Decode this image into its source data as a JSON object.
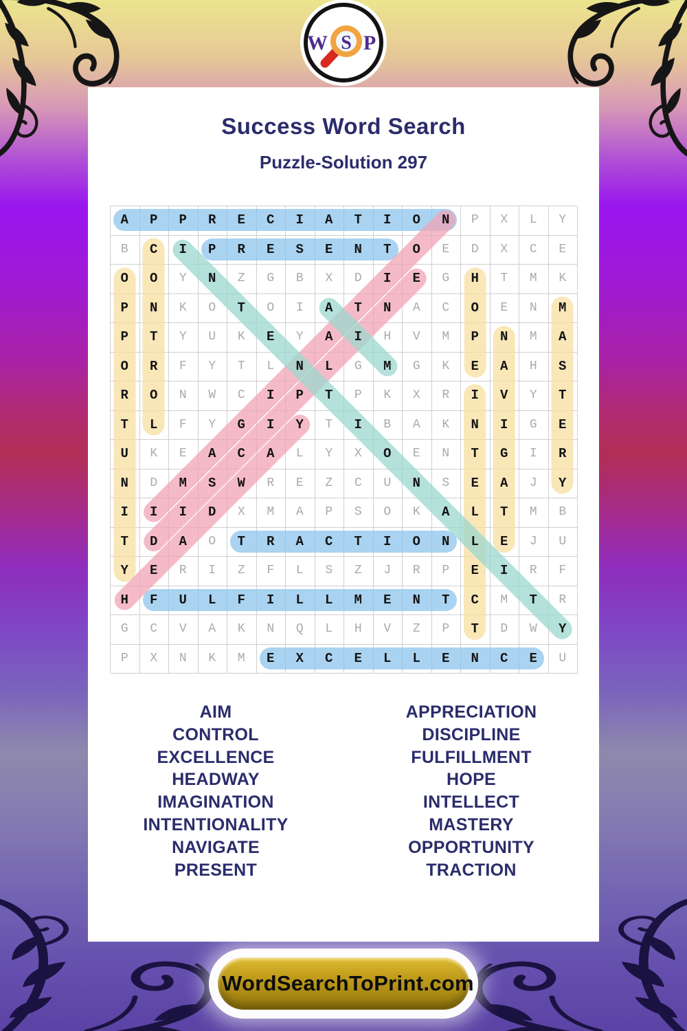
{
  "logo": {
    "letters": {
      "w": "W",
      "s": "S",
      "p": "P"
    }
  },
  "header": {
    "title": "Success Word Search",
    "subtitle": "Puzzle-Solution 297"
  },
  "puzzle": {
    "grid_size": 16,
    "grid": [
      "APPRECIATIONPXLY",
      "BCIPRESENTOEDXCE",
      "OOYNZGBXDIEGHTMK",
      "PNKOTOIATNACOENM",
      "PTYUKEYAIHVMPNMA",
      "ORFYTLNLGMGKEAHS",
      "RONWCIPTPKXRIVYT",
      "TLFYGIYTIBAKNIGE",
      "UKEACALYXOENTGIR",
      "NDMSWREZCUNSEAJY",
      "IIIDXMAPSOKALTMB",
      "TDAOTRACTIONLEJU",
      "YERIZFLSZJRPEIRF",
      "HFULFILLMENTCMTR",
      "GCVAKNQLHVZPTDWY",
      "PXNKMEXCELLENCEU"
    ],
    "solutions": [
      {
        "word": "APPRECIATION",
        "start": [
          1,
          1
        ],
        "end": [
          1,
          12
        ],
        "color": "blue"
      },
      {
        "word": "PRESENT",
        "start": [
          2,
          4
        ],
        "end": [
          2,
          10
        ],
        "color": "blue"
      },
      {
        "word": "TRACTION",
        "start": [
          12,
          5
        ],
        "end": [
          12,
          12
        ],
        "color": "blue"
      },
      {
        "word": "FULFILLMENT",
        "start": [
          14,
          2
        ],
        "end": [
          14,
          12
        ],
        "color": "blue"
      },
      {
        "word": "EXCELLENCE",
        "start": [
          16,
          6
        ],
        "end": [
          16,
          15
        ],
        "color": "blue"
      },
      {
        "word": "OPPORTUNITY",
        "start": [
          3,
          1
        ],
        "end": [
          13,
          1
        ],
        "color": "yellow"
      },
      {
        "word": "CONTROL",
        "start": [
          2,
          2
        ],
        "end": [
          8,
          2
        ],
        "color": "yellow"
      },
      {
        "word": "HOPE",
        "start": [
          3,
          13
        ],
        "end": [
          6,
          13
        ],
        "color": "yellow"
      },
      {
        "word": "INTELLECT",
        "start": [
          7,
          13
        ],
        "end": [
          15,
          13
        ],
        "color": "yellow"
      },
      {
        "word": "NAVIGATE",
        "start": [
          5,
          14
        ],
        "end": [
          12,
          14
        ],
        "color": "yellow"
      },
      {
        "word": "MASTERY",
        "start": [
          4,
          16
        ],
        "end": [
          10,
          16
        ],
        "color": "yellow"
      },
      {
        "word": "IMAGINATION",
        "start": [
          11,
          2
        ],
        "end": [
          1,
          12
        ],
        "color": "pink"
      },
      {
        "word": "DISCIPLINE",
        "start": [
          12,
          2
        ],
        "end": [
          3,
          11
        ],
        "color": "pink"
      },
      {
        "word": "HEADWAY",
        "start": [
          14,
          1
        ],
        "end": [
          8,
          7
        ],
        "color": "pink"
      },
      {
        "word": "INTENTIONALITY",
        "start": [
          2,
          3
        ],
        "end": [
          15,
          16
        ],
        "color": "teal"
      },
      {
        "word": "AIM",
        "start": [
          4,
          8
        ],
        "end": [
          6,
          10
        ],
        "color": "teal"
      }
    ],
    "highlight_colors": {
      "blue": "rgba(140,196,236,0.75)",
      "yellow": "rgba(247,223,160,0.75)",
      "pink": "rgba(242,163,182,0.75)",
      "teal": "rgba(155,215,206,0.75)"
    }
  },
  "word_list": {
    "left": [
      "AIM",
      "CONTROL",
      "EXCELLENCE",
      "HEADWAY",
      "IMAGINATION",
      "INTENTIONALITY",
      "NAVIGATE",
      "PRESENT"
    ],
    "right": [
      "APPRECIATION",
      "DISCIPLINE",
      "FULFILLMENT",
      "HOPE",
      "INTELLECT",
      "MASTERY",
      "OPPORTUNITY",
      "TRACTION"
    ]
  },
  "footer": {
    "site_label": "WordSearchToPrint.com"
  },
  "colors": {
    "title_navy": "#2b2c6b",
    "grid_line": "#cfcfcf",
    "letter_gray": "#aaaaaa",
    "letter_black": "#141414",
    "button_gold": "#c19c1b",
    "logo_purple": "#4f2b8e",
    "logo_orange": "#f2a440",
    "logo_handle_red": "#d82a1f"
  }
}
